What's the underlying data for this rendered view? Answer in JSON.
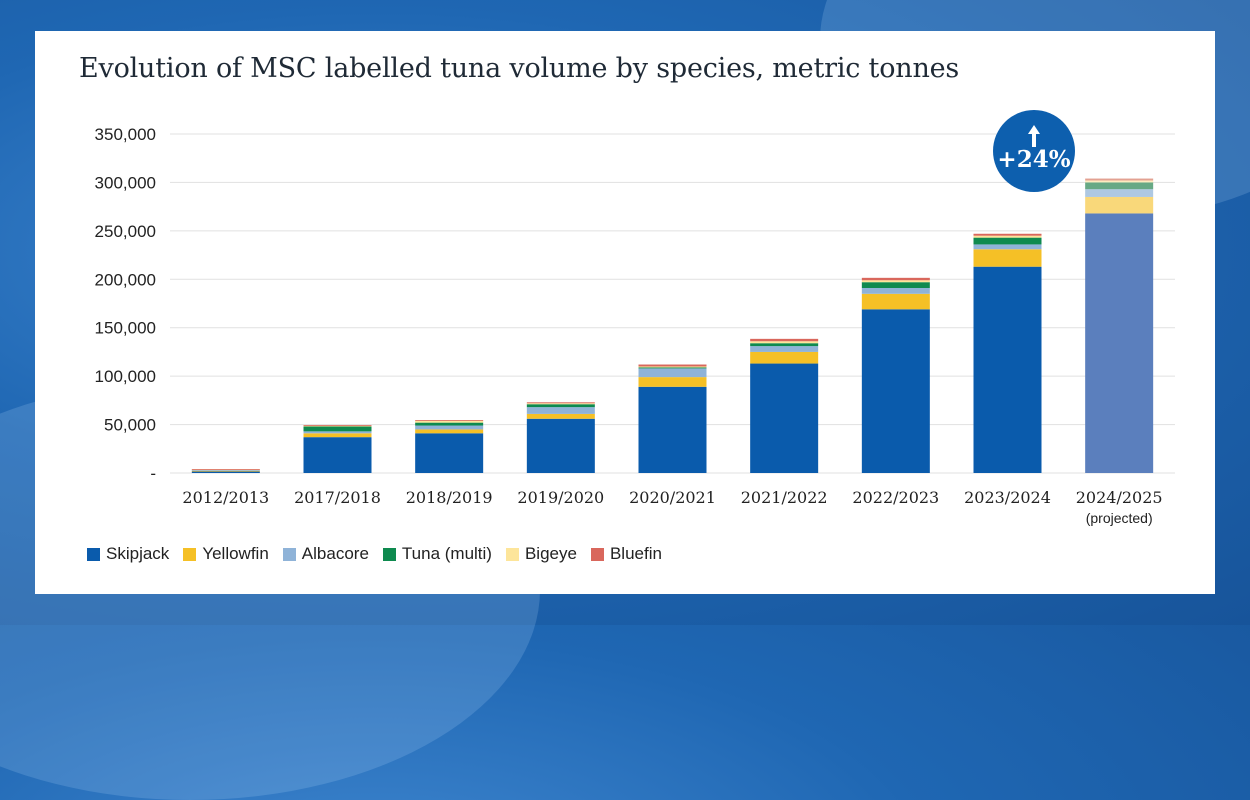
{
  "title": "Evolution of MSC labelled tuna volume by species, metric tonnes",
  "badge": {
    "text": "+24%",
    "icon": "up-arrow-icon"
  },
  "colors": {
    "Skipjack": "#0a5bac",
    "Skipjack (projected)": "#5b7fbd",
    "Yellowfin": "#f5c026",
    "Yellowfin (projected)": "#f9d87a",
    "Albacore": "#8fb3d8",
    "Albacore (projected)": "#aec8e2",
    "Tuna (multi)": "#0e8a4f",
    "Tuna (multi) (projected)": "#67a985",
    "Bigeye": "#fde59a",
    "Bigeye (projected)": "#fdecc0",
    "Bluefin": "#d9675c",
    "Bluefin (projected)": "#e3a192"
  },
  "chart_data": {
    "type": "bar",
    "stacked": true,
    "title": "Evolution of MSC labelled tuna volume by species, metric tonnes",
    "xlabel": "",
    "ylabel": "",
    "ylim": [
      0,
      350000
    ],
    "yticks": [
      0,
      50000,
      100000,
      150000,
      200000,
      250000,
      300000,
      350000
    ],
    "ytick_labels": [
      "-",
      "50,000",
      "100,000",
      "150,000",
      "200,000",
      "250,000",
      "300,000",
      "350,000"
    ],
    "grid": true,
    "legend_position": "bottom-left",
    "categories": [
      "2012/2013",
      "2017/2018",
      "2018/2019",
      "2019/2020",
      "2020/2021",
      "2021/2022",
      "2022/2023",
      "2023/2024",
      "2024/2025"
    ],
    "category_sublabels": [
      "",
      "",
      "",
      "",
      "",
      "",
      "",
      "",
      "(projected)"
    ],
    "series": [
      {
        "name": "Skipjack",
        "values": [
          1500,
          37000,
          41000,
          56000,
          89000,
          113000,
          169000,
          213000,
          268000
        ]
      },
      {
        "name": "Yellowfin",
        "values": [
          1000,
          4000,
          4000,
          5000,
          10000,
          12000,
          16000,
          18000,
          17000
        ]
      },
      {
        "name": "Albacore",
        "values": [
          500,
          2000,
          4000,
          7000,
          9000,
          6000,
          6000,
          5000,
          8000
        ]
      },
      {
        "name": "Tuna (multi)",
        "values": [
          0,
          5000,
          3000,
          3000,
          1000,
          3000,
          6000,
          7000,
          7000
        ]
      },
      {
        "name": "Bigeye",
        "values": [
          800,
          1000,
          2000,
          1000,
          1000,
          2000,
          2000,
          2000,
          2000
        ]
      },
      {
        "name": "Bluefin",
        "values": [
          200,
          500,
          700,
          1000,
          2000,
          2500,
          2500,
          2000,
          2000
        ]
      }
    ]
  }
}
